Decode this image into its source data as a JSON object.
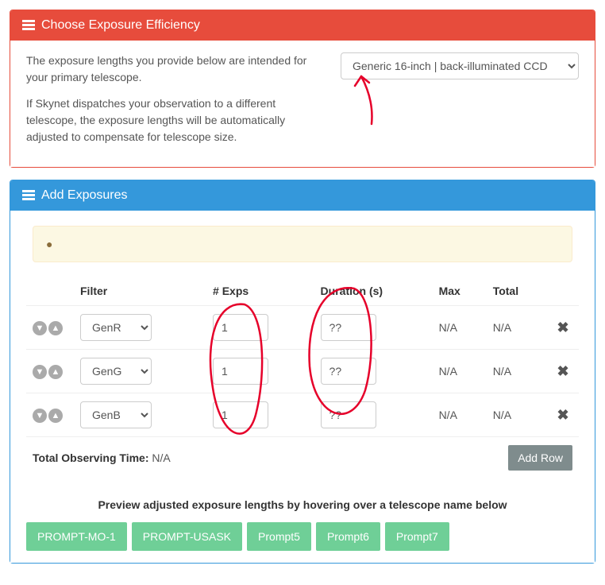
{
  "efficiency": {
    "title": "Choose Exposure Efficiency",
    "para1": "The exposure lengths you provide below are intended for your primary telescope.",
    "para2": "If Skynet dispatches your observation to a different telescope, the exposure lengths will be automatically adjusted to compensate for telescope size.",
    "selected": "Generic 16-inch | back-illuminated CCD"
  },
  "exposures": {
    "title": "Add Exposures",
    "headers": {
      "filter": "Filter",
      "exps": "# Exps",
      "duration": "Duration (s)",
      "max": "Max",
      "total": "Total"
    },
    "rows": [
      {
        "filter": "GenR",
        "exps": "1",
        "duration": "??",
        "max": "N/A",
        "total": "N/A"
      },
      {
        "filter": "GenG",
        "exps": "1",
        "duration": "??",
        "max": "N/A",
        "total": "N/A"
      },
      {
        "filter": "GenB",
        "exps": "1",
        "duration": "??",
        "max": "N/A",
        "total": "N/A"
      }
    ],
    "total_label": "Total Observing Time:",
    "total_value": "N/A",
    "add_row": "Add Row",
    "preview_text": "Preview adjusted exposure lengths by hovering over a telescope name below",
    "telescopes": [
      "PROMPT-MO-1",
      "PROMPT-USASK",
      "Prompt5",
      "Prompt6",
      "Prompt7"
    ]
  },
  "annotations": {
    "stroke": "#e6002a",
    "width": 2.5
  }
}
